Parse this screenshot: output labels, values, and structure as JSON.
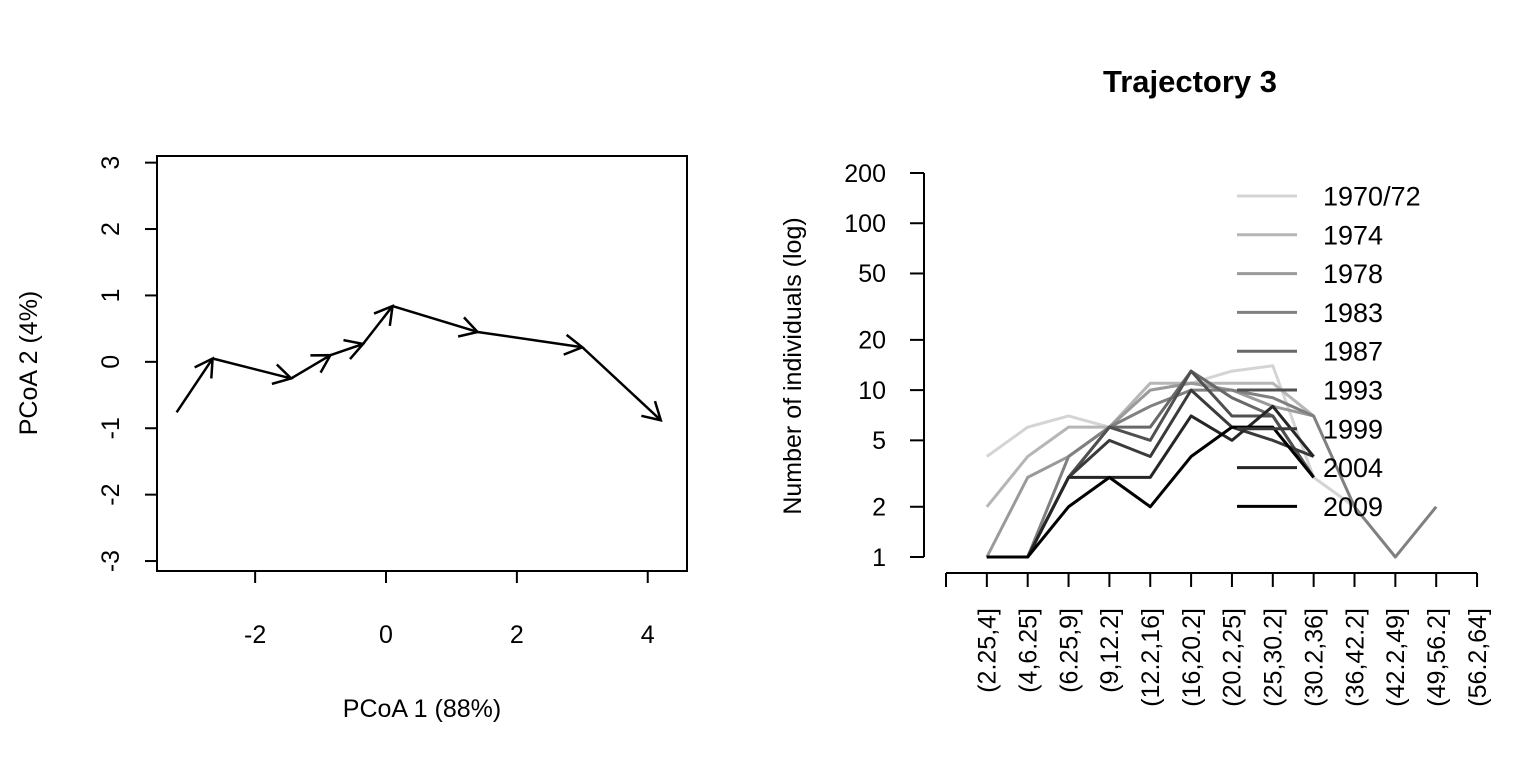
{
  "chart_data": [
    {
      "type": "line",
      "subtype": "trajectory-arrows",
      "title": "",
      "xlabel": "PCoA 1 (88%)",
      "ylabel": "PCoA 2 (4%)",
      "xlim": [
        -3.5,
        4.6
      ],
      "ylim": [
        -3.15,
        3.1
      ],
      "xticks": [
        -2,
        0,
        2,
        4
      ],
      "xtick_labels": [
        "-2",
        "0",
        "2",
        "4"
      ],
      "yticks": [
        -3,
        -2,
        -1,
        0,
        1,
        2,
        3
      ],
      "ytick_labels": [
        "-3",
        "-2",
        "-1",
        "0",
        "1",
        "2",
        "3"
      ],
      "points": [
        {
          "x": -3.2,
          "y": -0.76
        },
        {
          "x": -2.65,
          "y": 0.05
        },
        {
          "x": -1.45,
          "y": -0.25
        },
        {
          "x": -0.85,
          "y": 0.1
        },
        {
          "x": -0.35,
          "y": 0.27
        },
        {
          "x": 0.1,
          "y": 0.84
        },
        {
          "x": 1.4,
          "y": 0.45
        },
        {
          "x": 3.0,
          "y": 0.22
        },
        {
          "x": 4.2,
          "y": -0.88
        }
      ],
      "color": "#000000"
    },
    {
      "type": "line",
      "title": "Trajectory 3",
      "xlabel": "",
      "ylabel": "Number of individuals (log)",
      "y_scale": "log",
      "ylim": [
        1,
        200
      ],
      "yticks": [
        1,
        2,
        5,
        10,
        20,
        50,
        100,
        200
      ],
      "ytick_labels": [
        "1",
        "2",
        "5",
        "10",
        "20",
        "50",
        "100",
        "200"
      ],
      "categories": [
        "(2.25,4]",
        "(4,6.25]",
        "(6.25,9]",
        "(9,12.2]",
        "(12.2,16]",
        "(16,20.2]",
        "(20.2,25]",
        "(25,30.2]",
        "(30.2,36]",
        "(36,42.2]",
        "(42.2,49]",
        "(49,56.2]",
        "(56.2,64]"
      ],
      "legend_position": "top-right",
      "series": [
        {
          "name": "1970/72",
          "color": "#d4d4d4",
          "values": [
            4,
            6,
            7,
            6,
            10,
            11,
            13,
            14,
            3,
            2,
            null,
            null,
            null
          ]
        },
        {
          "name": "1974",
          "color": "#b6b6b6",
          "values": [
            2,
            4,
            6,
            6,
            11,
            11,
            11,
            11,
            7,
            null,
            null,
            null,
            null
          ]
        },
        {
          "name": "1978",
          "color": "#9a9a9a",
          "values": [
            1,
            3,
            4,
            6,
            10,
            11,
            10,
            8,
            7,
            null,
            null,
            null,
            null
          ]
        },
        {
          "name": "1983",
          "color": "#808080",
          "values": [
            1,
            1,
            4,
            6,
            8,
            10,
            10,
            9,
            7,
            2,
            1,
            2,
            null
          ]
        },
        {
          "name": "1987",
          "color": "#686868",
          "values": [
            1,
            1,
            3,
            6,
            6,
            13,
            9,
            7,
            3,
            null,
            null,
            null,
            null
          ]
        },
        {
          "name": "1993",
          "color": "#505050",
          "values": [
            1,
            1,
            3,
            6,
            5,
            13,
            7,
            7,
            3,
            null,
            null,
            null,
            null
          ]
        },
        {
          "name": "1999",
          "color": "#3a3a3a",
          "values": [
            1,
            1,
            3,
            5,
            4,
            10,
            6,
            5,
            4,
            null,
            null,
            null,
            null
          ]
        },
        {
          "name": "2004",
          "color": "#262626",
          "values": [
            1,
            1,
            3,
            3,
            3,
            7,
            5,
            8,
            4,
            null,
            null,
            null,
            null
          ]
        },
        {
          "name": "2009",
          "color": "#000000",
          "values": [
            1,
            1,
            2,
            3,
            2,
            4,
            6,
            6,
            3,
            null,
            null,
            null,
            null
          ]
        }
      ]
    }
  ]
}
